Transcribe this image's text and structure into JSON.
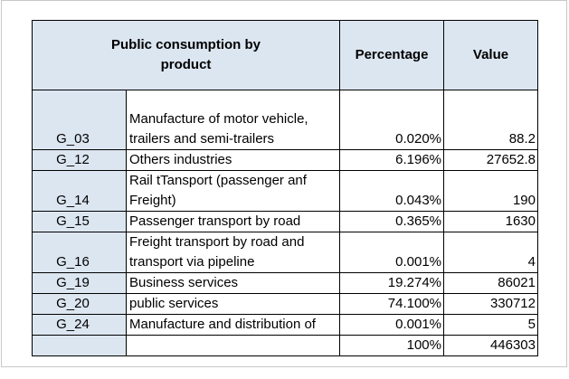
{
  "header": {
    "title": "Public consumption by product",
    "percentage": "Percentage",
    "value": "Value"
  },
  "rows": [
    {
      "code": "G_03",
      "product": "Manufacture of motor vehicle, trailers and semi-trailers",
      "percentage": "0.020%",
      "value": "88.2"
    },
    {
      "code": "G_12",
      "product": "Others industries",
      "percentage": "6.196%",
      "value": "27652.8"
    },
    {
      "code": "G_14",
      "product": "Rail tTansport (passenger anf Freight)",
      "percentage": "0.043%",
      "value": "190"
    },
    {
      "code": "G_15",
      "product": "Passenger transport by road",
      "percentage": "0.365%",
      "value": "1630"
    },
    {
      "code": "G_16",
      "product": "Freight transport by road and transport via pipeline",
      "percentage": "0.001%",
      "value": "4"
    },
    {
      "code": "G_19",
      "product": "Business services",
      "percentage": "19.274%",
      "value": "86021"
    },
    {
      "code": "G_20",
      "product": "public services",
      "percentage": "74.100%",
      "value": "330712"
    },
    {
      "code": "G_24",
      "product": "Manufacture and distribution of",
      "percentage": "0.001%",
      "value": "5"
    }
  ],
  "total": {
    "percentage": "100%",
    "value": "446303"
  }
}
